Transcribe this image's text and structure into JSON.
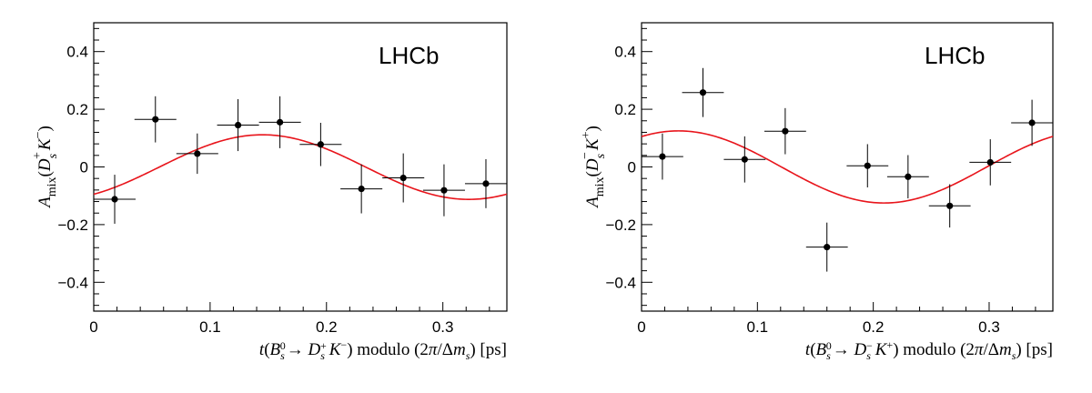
{
  "chart_data": [
    {
      "type": "scatter",
      "experiment_label": "LHCb",
      "ylabel": "A_mix(D_s^+ K^-)",
      "xlabel": "t(B_s^0 → D_s^+ K^-) modulo (2π/Δm_s) [ps]",
      "xlim": [
        0,
        0.355
      ],
      "ylim": [
        -0.5,
        0.5
      ],
      "xticks": [
        "0",
        "0.1",
        "0.2",
        "0.3"
      ],
      "yticks": [
        "−0.4",
        "−0.2",
        "0",
        "0.2",
        "0.4"
      ],
      "points": [
        {
          "x": 0.018,
          "y": -0.112,
          "xerr": 0.018,
          "yerr": 0.085
        },
        {
          "x": 0.053,
          "y": 0.165,
          "xerr": 0.018,
          "yerr": 0.08
        },
        {
          "x": 0.089,
          "y": 0.046,
          "xerr": 0.018,
          "yerr": 0.07
        },
        {
          "x": 0.124,
          "y": 0.145,
          "xerr": 0.018,
          "yerr": 0.09
        },
        {
          "x": 0.16,
          "y": 0.155,
          "xerr": 0.018,
          "yerr": 0.09
        },
        {
          "x": 0.195,
          "y": 0.078,
          "xerr": 0.018,
          "yerr": 0.075
        },
        {
          "x": 0.23,
          "y": -0.076,
          "xerr": 0.018,
          "yerr": 0.085
        },
        {
          "x": 0.266,
          "y": -0.038,
          "xerr": 0.018,
          "yerr": 0.085
        },
        {
          "x": 0.301,
          "y": -0.081,
          "xerr": 0.018,
          "yerr": 0.09
        },
        {
          "x": 0.337,
          "y": -0.058,
          "xerr": 0.018,
          "yerr": 0.085
        }
      ],
      "fit": {
        "color": "#e8141b",
        "amplitude": 0.112,
        "offset": -0.0005,
        "phase_peak": 0.145,
        "period": 0.3547
      }
    },
    {
      "type": "scatter",
      "experiment_label": "LHCb",
      "ylabel": "A_mix(D_s^- K^+)",
      "xlabel": "t(B_s^0 → D_s^- K^+) modulo (2π/Δm_s) [ps]",
      "xlim": [
        0,
        0.355
      ],
      "ylim": [
        -0.5,
        0.5
      ],
      "xticks": [
        "0",
        "0.1",
        "0.2",
        "0.3"
      ],
      "yticks": [
        "−0.4",
        "−0.2",
        "0",
        "0.2",
        "0.4"
      ],
      "points": [
        {
          "x": 0.018,
          "y": 0.036,
          "xerr": 0.018,
          "yerr": 0.08
        },
        {
          "x": 0.053,
          "y": 0.258,
          "xerr": 0.018,
          "yerr": 0.085
        },
        {
          "x": 0.089,
          "y": 0.026,
          "xerr": 0.018,
          "yerr": 0.08
        },
        {
          "x": 0.124,
          "y": 0.124,
          "xerr": 0.018,
          "yerr": 0.08
        },
        {
          "x": 0.16,
          "y": -0.278,
          "xerr": 0.018,
          "yerr": 0.085
        },
        {
          "x": 0.195,
          "y": 0.004,
          "xerr": 0.018,
          "yerr": 0.075
        },
        {
          "x": 0.23,
          "y": -0.034,
          "xerr": 0.018,
          "yerr": 0.075
        },
        {
          "x": 0.266,
          "y": -0.135,
          "xerr": 0.018,
          "yerr": 0.075
        },
        {
          "x": 0.301,
          "y": 0.016,
          "xerr": 0.018,
          "yerr": 0.08
        },
        {
          "x": 0.337,
          "y": 0.153,
          "xerr": 0.018,
          "yerr": 0.08
        }
      ],
      "fit": {
        "color": "#e8141b",
        "amplitude": 0.125,
        "offset": 0.0,
        "phase_peak": 0.032,
        "period": 0.3547
      }
    }
  ]
}
